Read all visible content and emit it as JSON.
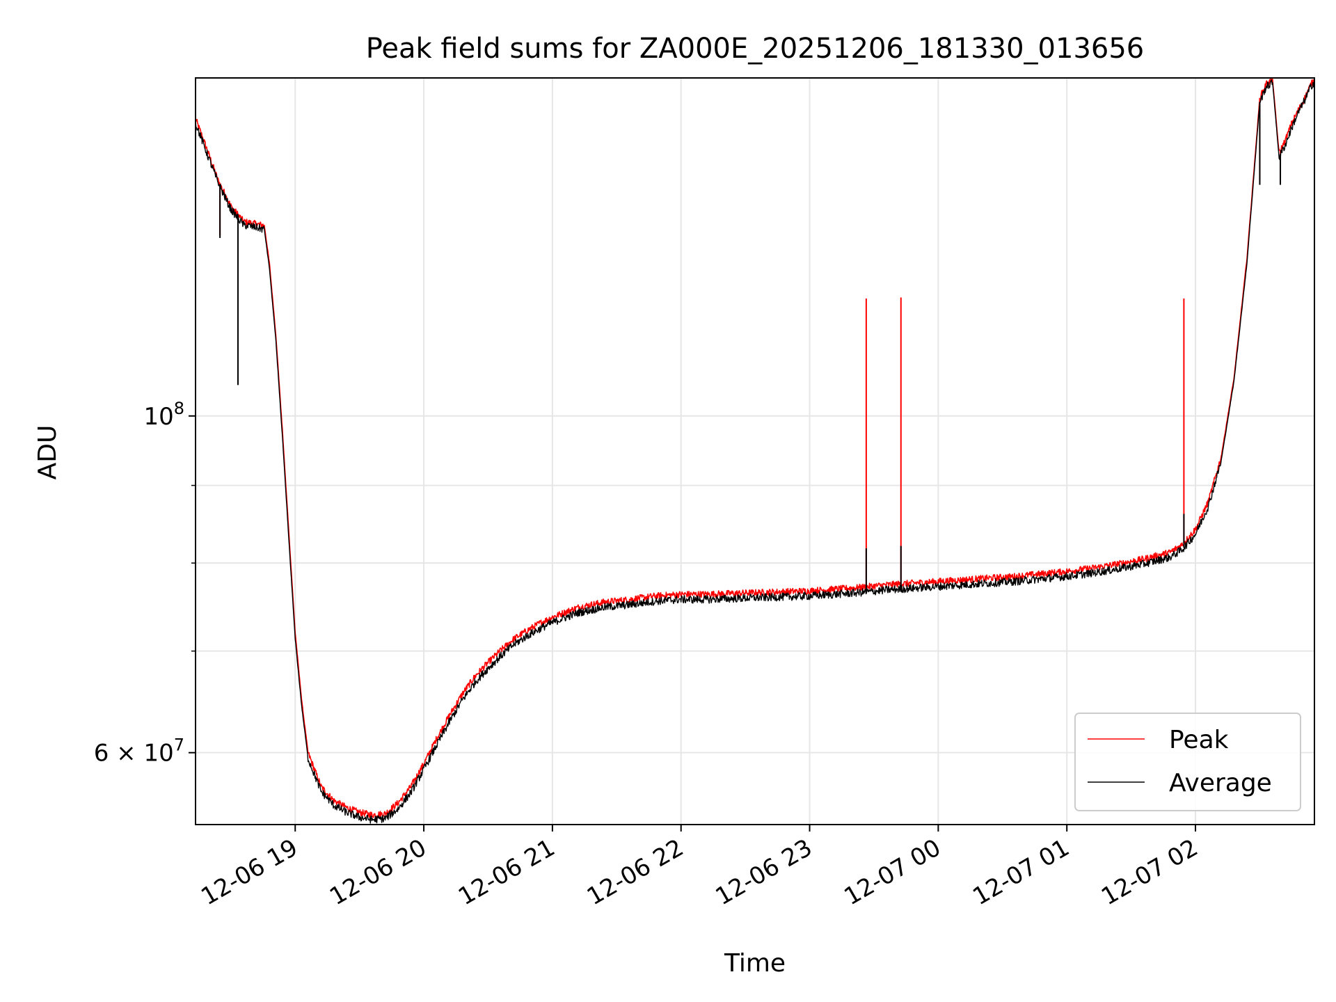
{
  "chart_data": {
    "type": "line",
    "title": "Peak field sums for ZA000E_20251206_181330_013656",
    "xlabel": "Time",
    "ylabel": "ADU",
    "yscale": "log",
    "grid": true,
    "legend_position": "lower right",
    "xlim_hours": [
      18.225,
      26.925
    ],
    "ylim": [
      53800000,
      167000000
    ],
    "x_ticks": [
      {
        "hour": 19,
        "label": "12-06 19"
      },
      {
        "hour": 20,
        "label": "12-06 20"
      },
      {
        "hour": 21,
        "label": "12-06 21"
      },
      {
        "hour": 22,
        "label": "12-06 22"
      },
      {
        "hour": 23,
        "label": "12-06 23"
      },
      {
        "hour": 24,
        "label": "12-07 00"
      },
      {
        "hour": 25,
        "label": "12-07 01"
      },
      {
        "hour": 26,
        "label": "12-07 02"
      }
    ],
    "y_major_ticks": [
      {
        "value": 100000000,
        "base": "10",
        "exp": "8"
      },
      {
        "value": 60000000,
        "mant": "6 × 10",
        "exp": "7"
      }
    ],
    "y_minor_ticks": [
      70000000,
      80000000,
      90000000
    ],
    "x_hours": [
      18.225,
      18.3,
      18.4,
      18.5,
      18.6,
      18.7,
      18.76,
      18.8,
      18.85,
      18.9,
      18.95,
      19.0,
      19.05,
      19.1,
      19.2,
      19.3,
      19.4,
      19.5,
      19.6,
      19.7,
      19.8,
      19.9,
      20.0,
      20.1,
      20.2,
      20.3,
      20.4,
      20.5,
      20.6,
      20.7,
      20.8,
      20.9,
      21.0,
      21.2,
      21.4,
      21.6,
      21.8,
      22.0,
      22.2,
      22.4,
      22.6,
      22.8,
      23.0,
      23.2,
      23.4,
      23.6,
      23.8,
      24.0,
      24.2,
      24.4,
      24.6,
      24.8,
      25.0,
      25.2,
      25.4,
      25.6,
      25.8,
      25.9,
      26.0,
      26.1,
      26.2,
      26.3,
      26.4,
      26.5,
      26.55,
      26.6,
      26.65,
      26.7,
      26.75,
      26.8,
      26.85,
      26.9,
      26.925
    ],
    "series": [
      {
        "name": "Peak",
        "color": "#ff0000",
        "values": [
          157000000,
          151000000,
          143000000,
          137500000,
          134300000,
          133800000,
          133500000,
          126000000,
          113000000,
          98000000,
          84000000,
          72000000,
          65000000,
          60000000,
          57000000,
          55800000,
          55200000,
          54800000,
          54600000,
          54700000,
          55600000,
          57000000,
          59000000,
          61300000,
          63500000,
          65600000,
          67400000,
          68800000,
          70100000,
          71300000,
          72200000,
          73000000,
          73700000,
          74800000,
          75400000,
          75700000,
          76100000,
          76300000,
          76300000,
          76400000,
          76500000,
          76600000,
          76700000,
          76900000,
          77100000,
          77400000,
          77600000,
          77800000,
          78000000,
          78200000,
          78400000,
          78700000,
          79000000,
          79400000,
          79900000,
          80500000,
          81300000,
          82300000,
          84200000,
          87800000,
          94000000,
          106000000,
          127000000,
          162000000,
          165500000,
          166500000,
          149000000,
          152000000,
          156000000,
          159000000,
          162000000,
          165500000,
          166500000
        ]
      },
      {
        "name": "Average",
        "color": "#000000",
        "values": [
          156000000,
          150000000,
          142500000,
          136800000,
          133600000,
          133100000,
          132700000,
          125000000,
          112000000,
          97000000,
          83000000,
          71300000,
          64400000,
          59500000,
          56600000,
          55400000,
          54800000,
          54400000,
          54200000,
          54300000,
          55100000,
          56500000,
          58500000,
          60700000,
          62900000,
          65000000,
          66800000,
          68200000,
          69500000,
          70700000,
          71600000,
          72400000,
          73100000,
          74200000,
          74800000,
          75100000,
          75500000,
          75700000,
          75700000,
          75800000,
          75900000,
          76000000,
          76100000,
          76300000,
          76500000,
          76800000,
          77000000,
          77200000,
          77400000,
          77600000,
          77800000,
          78100000,
          78400000,
          78800000,
          79300000,
          79900000,
          80700000,
          81700000,
          83600000,
          87200000,
          93400000,
          105500000,
          126000000,
          161000000,
          164800000,
          165800000,
          148000000,
          151000000,
          155000000,
          158500000,
          161500000,
          165000000,
          166000000
        ]
      }
    ],
    "spikes": [
      {
        "hour": 23.44,
        "peak_top": 119500000,
        "avg_top": 81800000
      },
      {
        "hour": 23.71,
        "peak_top": 119700000,
        "avg_top": 82100000
      },
      {
        "hour": 25.91,
        "peak_top": 119500000,
        "avg_top": 86200000
      }
    ],
    "dips": [
      {
        "hour": 18.415,
        "peak_bottom": 131500000,
        "avg_bottom": 131000000
      },
      {
        "hour": 18.555,
        "peak_bottom": 105300000,
        "avg_bottom": 104800000
      },
      {
        "hour": 26.5,
        "peak_bottom": 143000000,
        "avg_bottom": 142000000
      },
      {
        "hour": 26.66,
        "peak_bottom": 142500000,
        "avg_bottom": 142000000
      }
    ]
  }
}
